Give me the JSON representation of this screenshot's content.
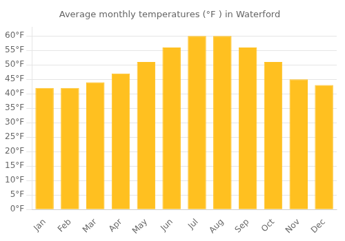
{
  "chart_data": {
    "type": "bar",
    "title": "Average monthly temperatures (°F ) in Waterford",
    "categories": [
      "Jan",
      "Feb",
      "Mar",
      "Apr",
      "May",
      "Jun",
      "Jul",
      "Aug",
      "Sep",
      "Oct",
      "Nov",
      "Dec"
    ],
    "values": [
      42,
      42,
      44,
      47,
      51,
      56,
      60,
      60,
      56,
      51,
      45,
      43
    ],
    "color": "#FFC020",
    "ylim": [
      0,
      63
    ],
    "yticks": [
      {
        "value": 0,
        "label": "0°F"
      },
      {
        "value": 5,
        "label": "5°F"
      },
      {
        "value": 10,
        "label": "10°F"
      },
      {
        "value": 15,
        "label": "15°F"
      },
      {
        "value": 20,
        "label": "20°F"
      },
      {
        "value": 25,
        "label": "25°F"
      },
      {
        "value": 30,
        "label": "30°F"
      },
      {
        "value": 35,
        "label": "35°F"
      },
      {
        "value": 40,
        "label": "40°F"
      },
      {
        "value": 45,
        "label": "45°F"
      },
      {
        "value": 50,
        "label": "50°F"
      },
      {
        "value": 55,
        "label": "55°F"
      },
      {
        "value": 60,
        "label": "60°F"
      }
    ],
    "grid": true
  }
}
